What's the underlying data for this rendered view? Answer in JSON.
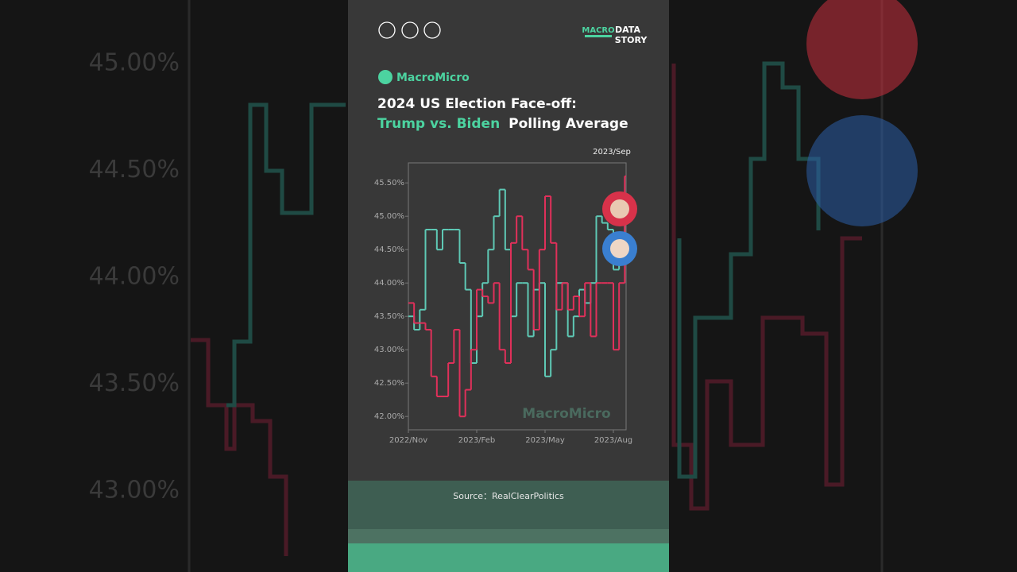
{
  "header": {
    "logo_top": "MACRO",
    "logo_word1": "DATA",
    "logo_word2": "STORY"
  },
  "brand": "MacroMicro",
  "watermark": "MacroMicro",
  "source": "Source：RealClearPolitics",
  "background": {
    "labels": [
      "45.00%",
      "44.50%",
      "44.00%",
      "43.50%",
      "43.00%"
    ]
  },
  "chart_data": {
    "type": "line",
    "step": true,
    "title_line1": "2024 US Election Face-off:",
    "title_highlight": "Trump vs. Biden",
    "title_rest": "Polling Average",
    "annotation": "2023/Sep",
    "categories": [
      "2022/Nov",
      null,
      null,
      null,
      null,
      null,
      null,
      null,
      null,
      null,
      null,
      null,
      "2023/Feb",
      null,
      null,
      null,
      null,
      null,
      null,
      null,
      null,
      null,
      null,
      null,
      "2023/May",
      null,
      null,
      null,
      null,
      null,
      null,
      null,
      null,
      null,
      null,
      null,
      "2023/Aug",
      null,
      null
    ],
    "series": [
      {
        "name": "Biden",
        "color": "#5ec9b5",
        "values": [
          43.5,
          43.3,
          43.6,
          44.8,
          44.8,
          44.5,
          44.8,
          44.8,
          44.8,
          44.3,
          43.9,
          42.8,
          43.5,
          44.0,
          44.5,
          45.0,
          45.4,
          44.5,
          43.5,
          44.0,
          44.0,
          43.2,
          43.9,
          44.0,
          42.6,
          43.0,
          44.0,
          44.0,
          43.2,
          43.5,
          43.9,
          43.7,
          44.0,
          45.0,
          44.9,
          44.8,
          44.2,
          44.5,
          44.9
        ]
      },
      {
        "name": "Trump",
        "color": "#e0305a",
        "values": [
          43.7,
          43.4,
          43.4,
          43.3,
          42.6,
          42.3,
          42.3,
          42.8,
          43.3,
          42.0,
          42.4,
          43.0,
          43.9,
          43.8,
          43.7,
          44.0,
          43.0,
          42.8,
          44.6,
          45.0,
          44.5,
          44.2,
          43.3,
          44.5,
          45.3,
          44.6,
          43.6,
          44.0,
          43.6,
          43.8,
          43.5,
          44.0,
          43.2,
          44.0,
          44.0,
          44.0,
          43.0,
          44.0,
          45.6
        ]
      }
    ],
    "ylim": [
      41.8,
      45.8
    ],
    "yticks": [
      {
        "value": 42.0,
        "label": "42.00%"
      },
      {
        "value": 42.5,
        "label": "42.50%"
      },
      {
        "value": 43.0,
        "label": "43.00%"
      },
      {
        "value": 43.5,
        "label": "43.50%"
      },
      {
        "value": 44.0,
        "label": "44.00%"
      },
      {
        "value": 44.5,
        "label": "44.50%"
      },
      {
        "value": 45.0,
        "label": "45.00%"
      },
      {
        "value": 45.5,
        "label": "45.50%"
      }
    ]
  }
}
